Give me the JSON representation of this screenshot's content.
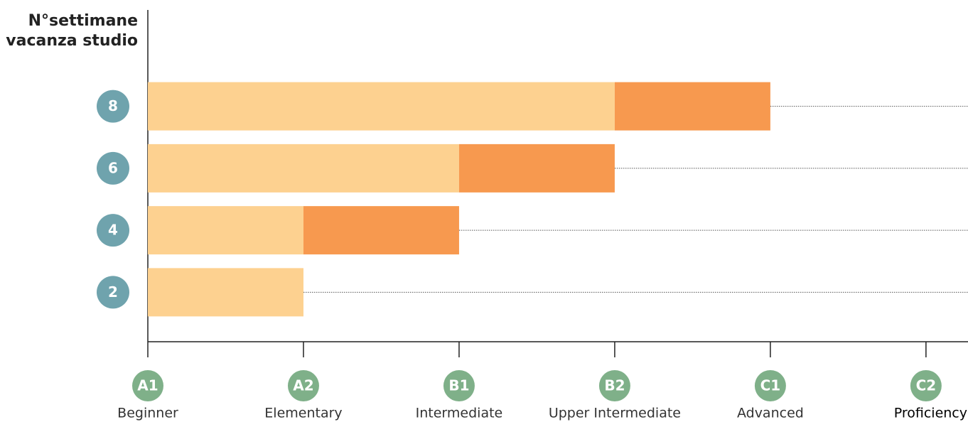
{
  "chart_data": {
    "type": "stacked-barh",
    "ylabel": [
      "N°settimane",
      "vacanza studio"
    ],
    "categories": [
      "8",
      "6",
      "4",
      "2"
    ],
    "series": [
      {
        "color": "#fdd190",
        "values": [
          3,
          2,
          1,
          1
        ]
      },
      {
        "color": "#f7994f",
        "values": [
          1,
          1,
          1,
          0
        ]
      }
    ],
    "xlim": [
      0,
      5.27
    ],
    "xticks": [
      {
        "value": 0,
        "label": "A1"
      },
      {
        "value": 1,
        "label": "A2"
      },
      {
        "value": 2,
        "label": "B1"
      },
      {
        "value": 3,
        "label": "B2"
      },
      {
        "value": 4,
        "label": "C1"
      },
      {
        "value": 5,
        "label": "C2"
      }
    ],
    "xtick_names": [
      "Beginner",
      "Elementary",
      "Intermediate",
      "Upper Intermediate",
      "Advanced",
      "Proficiency"
    ],
    "category_color": "#6fa3ad",
    "tick_color": "#7fb089",
    "guide_lines": true
  }
}
